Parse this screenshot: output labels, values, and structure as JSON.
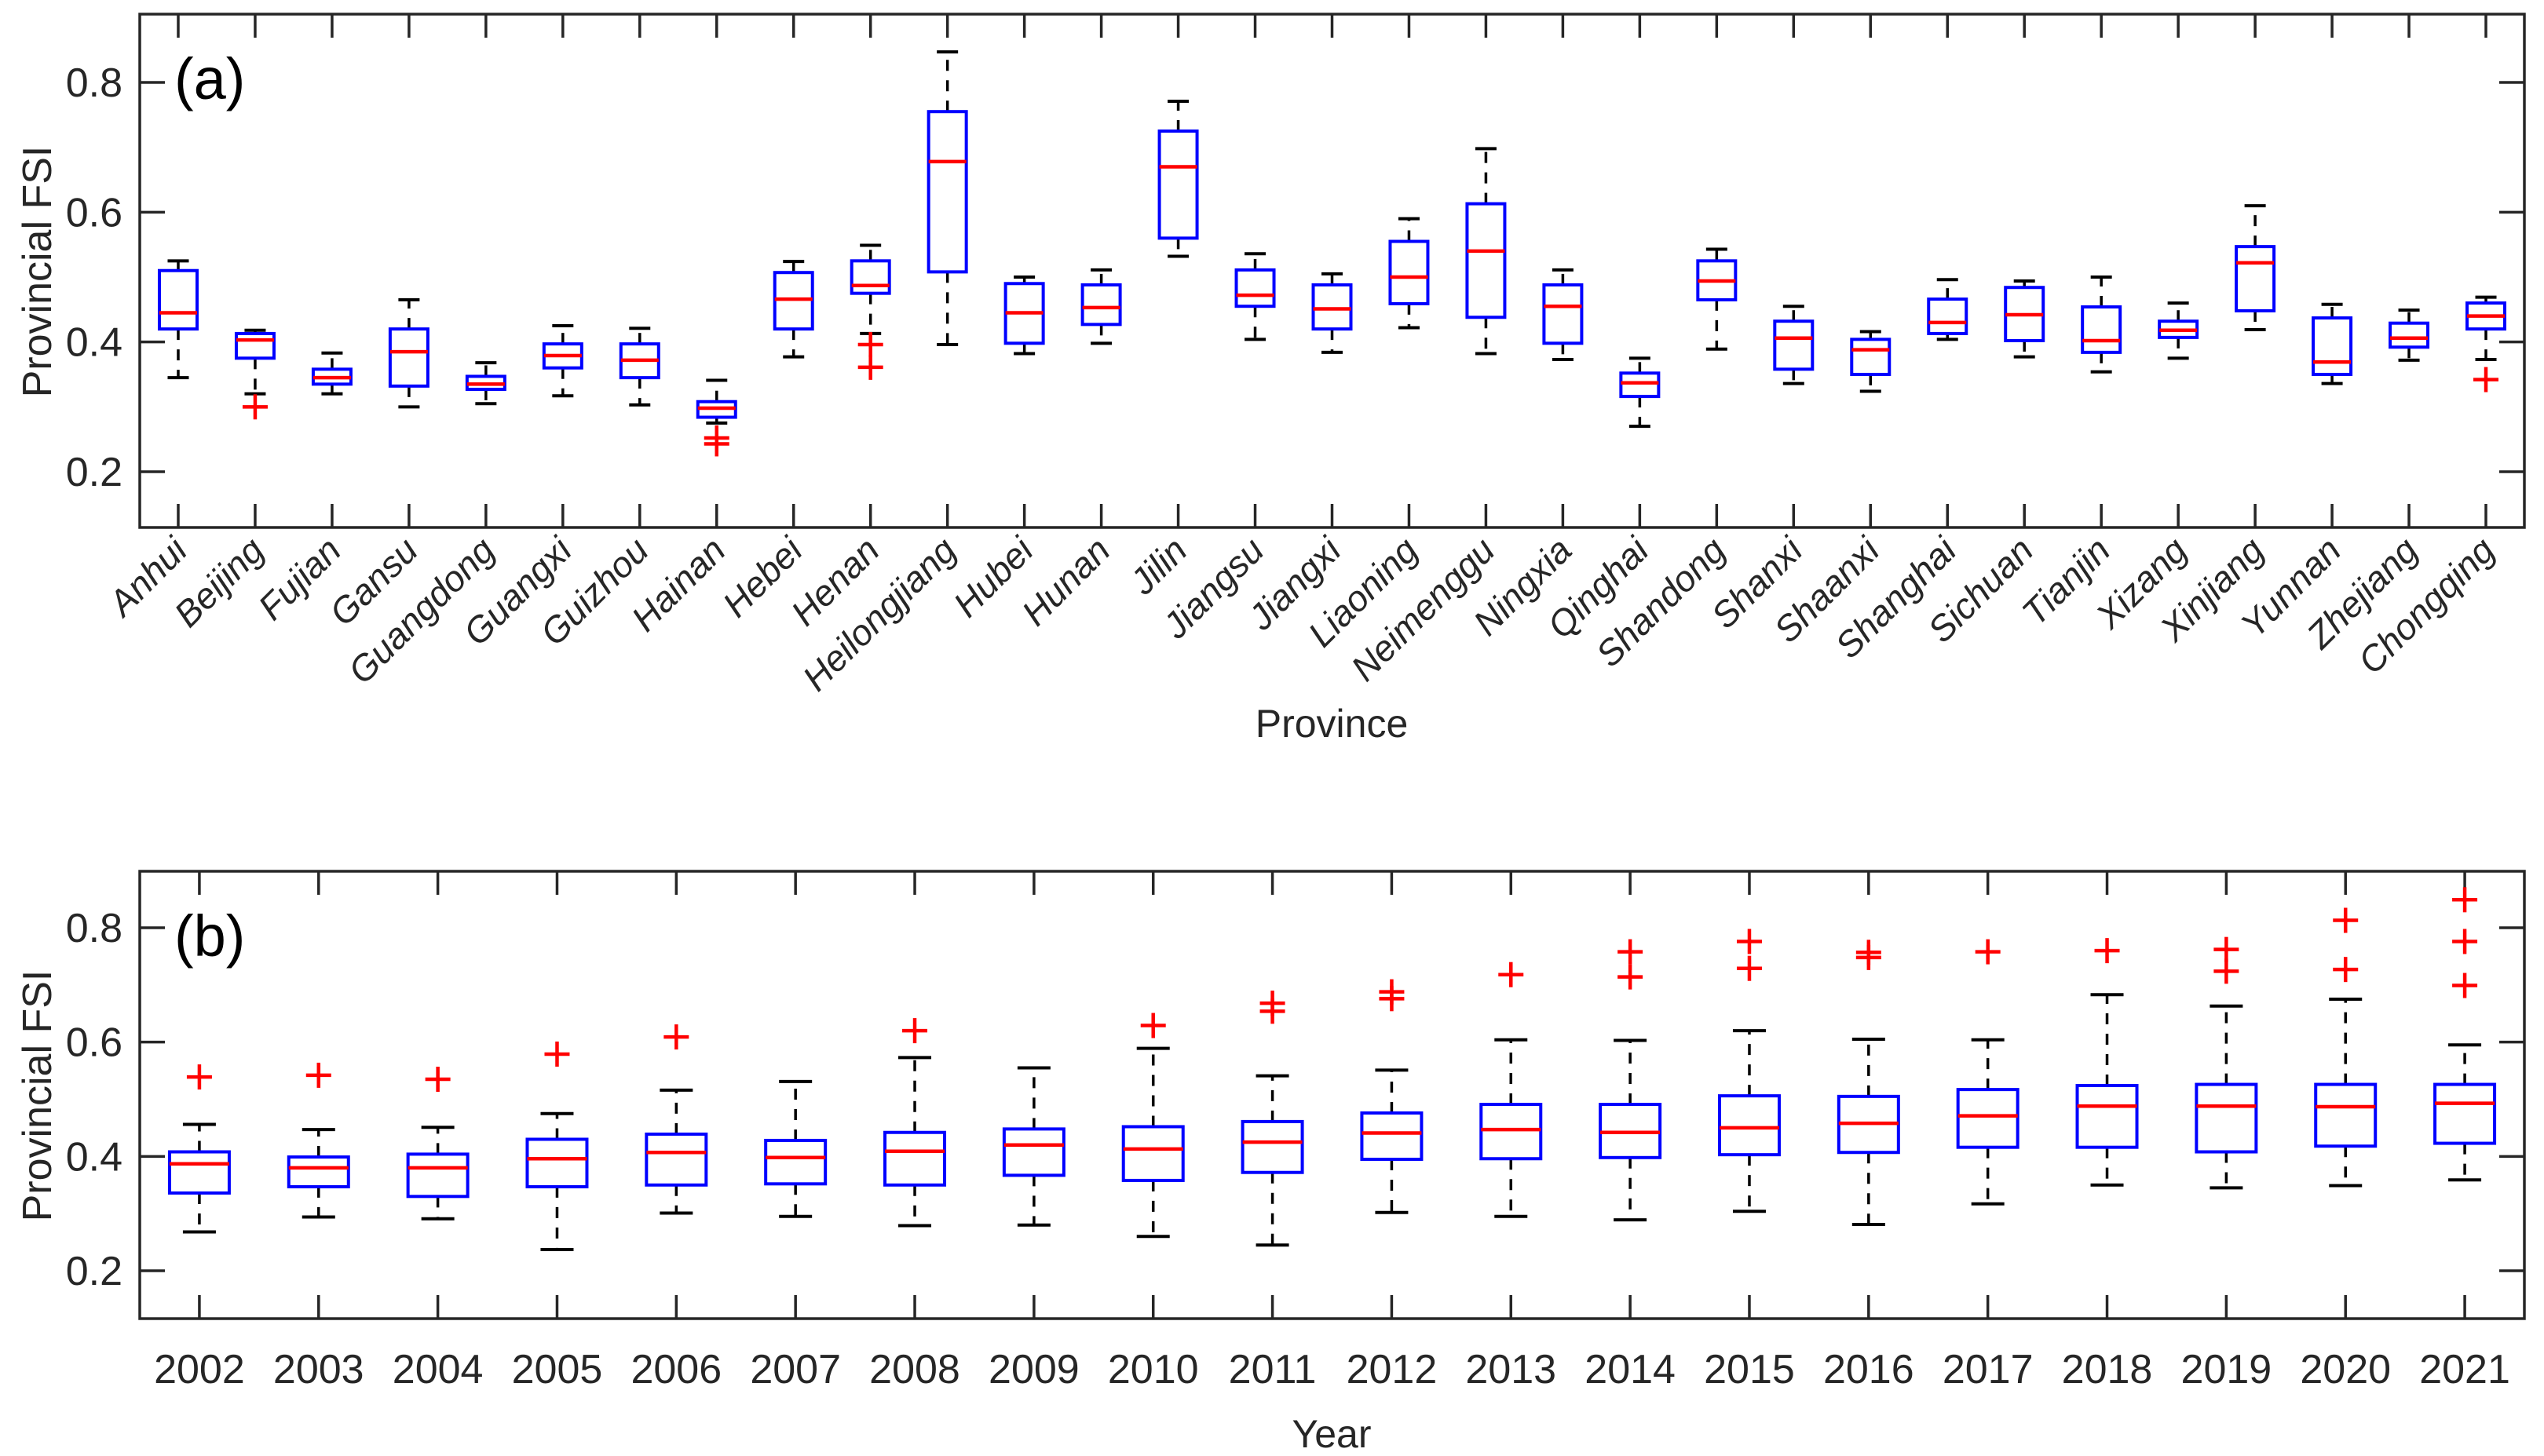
{
  "style": {
    "background": "#FFFFFF",
    "axis_color": "#262626",
    "box_color": "#0000FF",
    "median_color": "#FF0000",
    "whisker_color": "#000000",
    "cap_color": "#000000",
    "outlier_color": "#FF0000",
    "tick_label_color": "#262626"
  },
  "chart_data": [
    {
      "id": "panel-a",
      "type": "boxplot",
      "panel_label": "(a)",
      "xlabel": "Province",
      "ylabel": "Provincial FSI",
      "ylim": [
        0.117,
        0.905
      ],
      "yticks": [
        0.2,
        0.4,
        0.6,
        0.8
      ],
      "ytick_labels": [
        "0.2",
        "0.4",
        "0.6",
        "0.8"
      ],
      "grid": false,
      "categories": [
        "Anhui",
        "Beijing",
        "Fujian",
        "Gansu",
        "Guangdong",
        "Guangxi",
        "Guizhou",
        "Hainan",
        "Hebei",
        "Henan",
        "Heilongjiang",
        "Hubei",
        "Hunan",
        "Jilin",
        "Jiangsu",
        "Jiangxi",
        "Liaoning",
        "Neimenggu",
        "Ningxia",
        "Qinghai",
        "Shandong",
        "Shanxi",
        "Shaanxi",
        "Shanghai",
        "Sichuan",
        "Tianjin",
        "Xizang",
        "Xinjiang",
        "Yunnan",
        "Zhejiang",
        "Chongqing"
      ],
      "boxes": [
        {
          "category": "Anhui",
          "whisker_low": 0.345,
          "q1": 0.42,
          "median": 0.445,
          "q3": 0.51,
          "whisker_high": 0.525,
          "outliers": []
        },
        {
          "category": "Beijing",
          "whisker_low": 0.32,
          "q1": 0.375,
          "median": 0.403,
          "q3": 0.413,
          "whisker_high": 0.418,
          "outliers": [
            0.3
          ]
        },
        {
          "category": "Fujian",
          "whisker_low": 0.32,
          "q1": 0.335,
          "median": 0.345,
          "q3": 0.358,
          "whisker_high": 0.383,
          "outliers": []
        },
        {
          "category": "Gansu",
          "whisker_low": 0.3,
          "q1": 0.332,
          "median": 0.385,
          "q3": 0.42,
          "whisker_high": 0.465,
          "outliers": []
        },
        {
          "category": "Guangdong",
          "whisker_low": 0.305,
          "q1": 0.327,
          "median": 0.335,
          "q3": 0.347,
          "whisker_high": 0.368,
          "outliers": []
        },
        {
          "category": "Guangxi",
          "whisker_low": 0.317,
          "q1": 0.36,
          "median": 0.379,
          "q3": 0.397,
          "whisker_high": 0.425,
          "outliers": []
        },
        {
          "category": "Guizhou",
          "whisker_low": 0.303,
          "q1": 0.345,
          "median": 0.372,
          "q3": 0.397,
          "whisker_high": 0.421,
          "outliers": []
        },
        {
          "category": "Hainan",
          "whisker_low": 0.275,
          "q1": 0.284,
          "median": 0.298,
          "q3": 0.308,
          "whisker_high": 0.341,
          "outliers": [
            0.252,
            0.243
          ]
        },
        {
          "category": "Hebei",
          "whisker_low": 0.377,
          "q1": 0.42,
          "median": 0.466,
          "q3": 0.507,
          "whisker_high": 0.524,
          "outliers": []
        },
        {
          "category": "Henan",
          "whisker_low": 0.413,
          "q1": 0.475,
          "median": 0.487,
          "q3": 0.525,
          "whisker_high": 0.549,
          "outliers": [
            0.396,
            0.361
          ]
        },
        {
          "category": "Heilongjiang",
          "whisker_low": 0.396,
          "q1": 0.508,
          "median": 0.678,
          "q3": 0.755,
          "whisker_high": 0.847,
          "outliers": []
        },
        {
          "category": "Hubei",
          "whisker_low": 0.382,
          "q1": 0.398,
          "median": 0.445,
          "q3": 0.49,
          "whisker_high": 0.5,
          "outliers": []
        },
        {
          "category": "Hunan",
          "whisker_low": 0.398,
          "q1": 0.427,
          "median": 0.453,
          "q3": 0.488,
          "whisker_high": 0.511,
          "outliers": []
        },
        {
          "category": "Jilin",
          "whisker_low": 0.532,
          "q1": 0.56,
          "median": 0.67,
          "q3": 0.725,
          "whisker_high": 0.771,
          "outliers": []
        },
        {
          "category": "Jiangsu",
          "whisker_low": 0.404,
          "q1": 0.455,
          "median": 0.472,
          "q3": 0.511,
          "whisker_high": 0.536,
          "outliers": []
        },
        {
          "category": "Jiangxi",
          "whisker_low": 0.384,
          "q1": 0.42,
          "median": 0.451,
          "q3": 0.488,
          "whisker_high": 0.505,
          "outliers": []
        },
        {
          "category": "Liaoning",
          "whisker_low": 0.422,
          "q1": 0.459,
          "median": 0.5,
          "q3": 0.555,
          "whisker_high": 0.59,
          "outliers": []
        },
        {
          "category": "Neimenggu",
          "whisker_low": 0.382,
          "q1": 0.438,
          "median": 0.54,
          "q3": 0.613,
          "whisker_high": 0.698,
          "outliers": []
        },
        {
          "category": "Ningxia",
          "whisker_low": 0.373,
          "q1": 0.398,
          "median": 0.455,
          "q3": 0.488,
          "whisker_high": 0.511,
          "outliers": []
        },
        {
          "category": "Qinghai",
          "whisker_low": 0.27,
          "q1": 0.316,
          "median": 0.337,
          "q3": 0.352,
          "whisker_high": 0.375,
          "outliers": []
        },
        {
          "category": "Shandong",
          "whisker_low": 0.389,
          "q1": 0.465,
          "median": 0.494,
          "q3": 0.525,
          "whisker_high": 0.543,
          "outliers": []
        },
        {
          "category": "Shanxi",
          "whisker_low": 0.336,
          "q1": 0.358,
          "median": 0.406,
          "q3": 0.432,
          "whisker_high": 0.455,
          "outliers": []
        },
        {
          "category": "Shaanxi",
          "whisker_low": 0.324,
          "q1": 0.35,
          "median": 0.388,
          "q3": 0.404,
          "whisker_high": 0.416,
          "outliers": []
        },
        {
          "category": "Shanghai",
          "whisker_low": 0.404,
          "q1": 0.413,
          "median": 0.43,
          "q3": 0.466,
          "whisker_high": 0.496,
          "outliers": []
        },
        {
          "category": "Sichuan",
          "whisker_low": 0.377,
          "q1": 0.402,
          "median": 0.442,
          "q3": 0.484,
          "whisker_high": 0.494,
          "outliers": []
        },
        {
          "category": "Tianjin",
          "whisker_low": 0.354,
          "q1": 0.384,
          "median": 0.402,
          "q3": 0.454,
          "whisker_high": 0.5,
          "outliers": []
        },
        {
          "category": "Xizang",
          "whisker_low": 0.375,
          "q1": 0.407,
          "median": 0.418,
          "q3": 0.432,
          "whisker_high": 0.46,
          "outliers": []
        },
        {
          "category": "Xinjiang",
          "whisker_low": 0.419,
          "q1": 0.448,
          "median": 0.522,
          "q3": 0.547,
          "whisker_high": 0.61,
          "outliers": []
        },
        {
          "category": "Yunnan",
          "whisker_low": 0.336,
          "q1": 0.35,
          "median": 0.369,
          "q3": 0.437,
          "whisker_high": 0.458,
          "outliers": []
        },
        {
          "category": "Zhejiang",
          "whisker_low": 0.372,
          "q1": 0.392,
          "median": 0.406,
          "q3": 0.429,
          "whisker_high": 0.449,
          "outliers": []
        },
        {
          "category": "Chongqing",
          "whisker_low": 0.373,
          "q1": 0.42,
          "median": 0.44,
          "q3": 0.46,
          "whisker_high": 0.469,
          "outliers": [
            0.342
          ]
        }
      ]
    },
    {
      "id": "panel-b",
      "type": "boxplot",
      "panel_label": "(b)",
      "xlabel": "Year",
      "ylabel": "Provincial FSI",
      "ylim": [
        0.116,
        0.899
      ],
      "yticks": [
        0.2,
        0.4,
        0.6,
        0.8
      ],
      "ytick_labels": [
        "0.2",
        "0.4",
        "0.6",
        "0.8"
      ],
      "grid": false,
      "categories": [
        "2002",
        "2003",
        "2004",
        "2005",
        "2006",
        "2007",
        "2008",
        "2009",
        "2010",
        "2011",
        "2012",
        "2013",
        "2014",
        "2015",
        "2016",
        "2017",
        "2018",
        "2019",
        "2020",
        "2021"
      ],
      "boxes": [
        {
          "category": "2002",
          "whisker_low": 0.268,
          "q1": 0.336,
          "median": 0.387,
          "q3": 0.408,
          "whisker_high": 0.456,
          "outliers": [
            0.539
          ]
        },
        {
          "category": "2003",
          "whisker_low": 0.294,
          "q1": 0.347,
          "median": 0.38,
          "q3": 0.399,
          "whisker_high": 0.447,
          "outliers": [
            0.542
          ]
        },
        {
          "category": "2004",
          "whisker_low": 0.291,
          "q1": 0.33,
          "median": 0.38,
          "q3": 0.404,
          "whisker_high": 0.451,
          "outliers": [
            0.535
          ]
        },
        {
          "category": "2005",
          "whisker_low": 0.237,
          "q1": 0.347,
          "median": 0.396,
          "q3": 0.43,
          "whisker_high": 0.475,
          "outliers": [
            0.579
          ]
        },
        {
          "category": "2006",
          "whisker_low": 0.301,
          "q1": 0.35,
          "median": 0.407,
          "q3": 0.439,
          "whisker_high": 0.516,
          "outliers": [
            0.609
          ]
        },
        {
          "category": "2007",
          "whisker_low": 0.295,
          "q1": 0.352,
          "median": 0.398,
          "q3": 0.428,
          "whisker_high": 0.531,
          "outliers": []
        },
        {
          "category": "2008",
          "whisker_low": 0.279,
          "q1": 0.35,
          "median": 0.409,
          "q3": 0.442,
          "whisker_high": 0.573,
          "outliers": [
            0.62
          ]
        },
        {
          "category": "2009",
          "whisker_low": 0.28,
          "q1": 0.367,
          "median": 0.42,
          "q3": 0.448,
          "whisker_high": 0.555,
          "outliers": []
        },
        {
          "category": "2010",
          "whisker_low": 0.26,
          "q1": 0.358,
          "median": 0.413,
          "q3": 0.452,
          "whisker_high": 0.589,
          "outliers": [
            0.629
          ]
        },
        {
          "category": "2011",
          "whisker_low": 0.245,
          "q1": 0.372,
          "median": 0.425,
          "q3": 0.461,
          "whisker_high": 0.541,
          "outliers": [
            0.668,
            0.654
          ]
        },
        {
          "category": "2012",
          "whisker_low": 0.302,
          "q1": 0.395,
          "median": 0.441,
          "q3": 0.476,
          "whisker_high": 0.551,
          "outliers": [
            0.688,
            0.676
          ]
        },
        {
          "category": "2013",
          "whisker_low": 0.295,
          "q1": 0.396,
          "median": 0.447,
          "q3": 0.491,
          "whisker_high": 0.604,
          "outliers": [
            0.718
          ]
        },
        {
          "category": "2014",
          "whisker_low": 0.289,
          "q1": 0.398,
          "median": 0.442,
          "q3": 0.491,
          "whisker_high": 0.603,
          "outliers": [
            0.758,
            0.714
          ]
        },
        {
          "category": "2015",
          "whisker_low": 0.304,
          "q1": 0.403,
          "median": 0.45,
          "q3": 0.506,
          "whisker_high": 0.62,
          "outliers": [
            0.776,
            0.729
          ]
        },
        {
          "category": "2016",
          "whisker_low": 0.281,
          "q1": 0.407,
          "median": 0.458,
          "q3": 0.505,
          "whisker_high": 0.605,
          "outliers": [
            0.757,
            0.748
          ]
        },
        {
          "category": "2017",
          "whisker_low": 0.317,
          "q1": 0.416,
          "median": 0.471,
          "q3": 0.517,
          "whisker_high": 0.604,
          "outliers": [
            0.758
          ]
        },
        {
          "category": "2018",
          "whisker_low": 0.35,
          "q1": 0.416,
          "median": 0.488,
          "q3": 0.524,
          "whisker_high": 0.683,
          "outliers": [
            0.76
          ]
        },
        {
          "category": "2019",
          "whisker_low": 0.345,
          "q1": 0.408,
          "median": 0.488,
          "q3": 0.526,
          "whisker_high": 0.663,
          "outliers": [
            0.762,
            0.724
          ]
        },
        {
          "category": "2020",
          "whisker_low": 0.349,
          "q1": 0.418,
          "median": 0.487,
          "q3": 0.526,
          "whisker_high": 0.675,
          "outliers": [
            0.813,
            0.727
          ]
        },
        {
          "category": "2021",
          "whisker_low": 0.359,
          "q1": 0.423,
          "median": 0.493,
          "q3": 0.526,
          "whisker_high": 0.595,
          "outliers": [
            0.849,
            0.776,
            0.699
          ]
        }
      ]
    }
  ]
}
